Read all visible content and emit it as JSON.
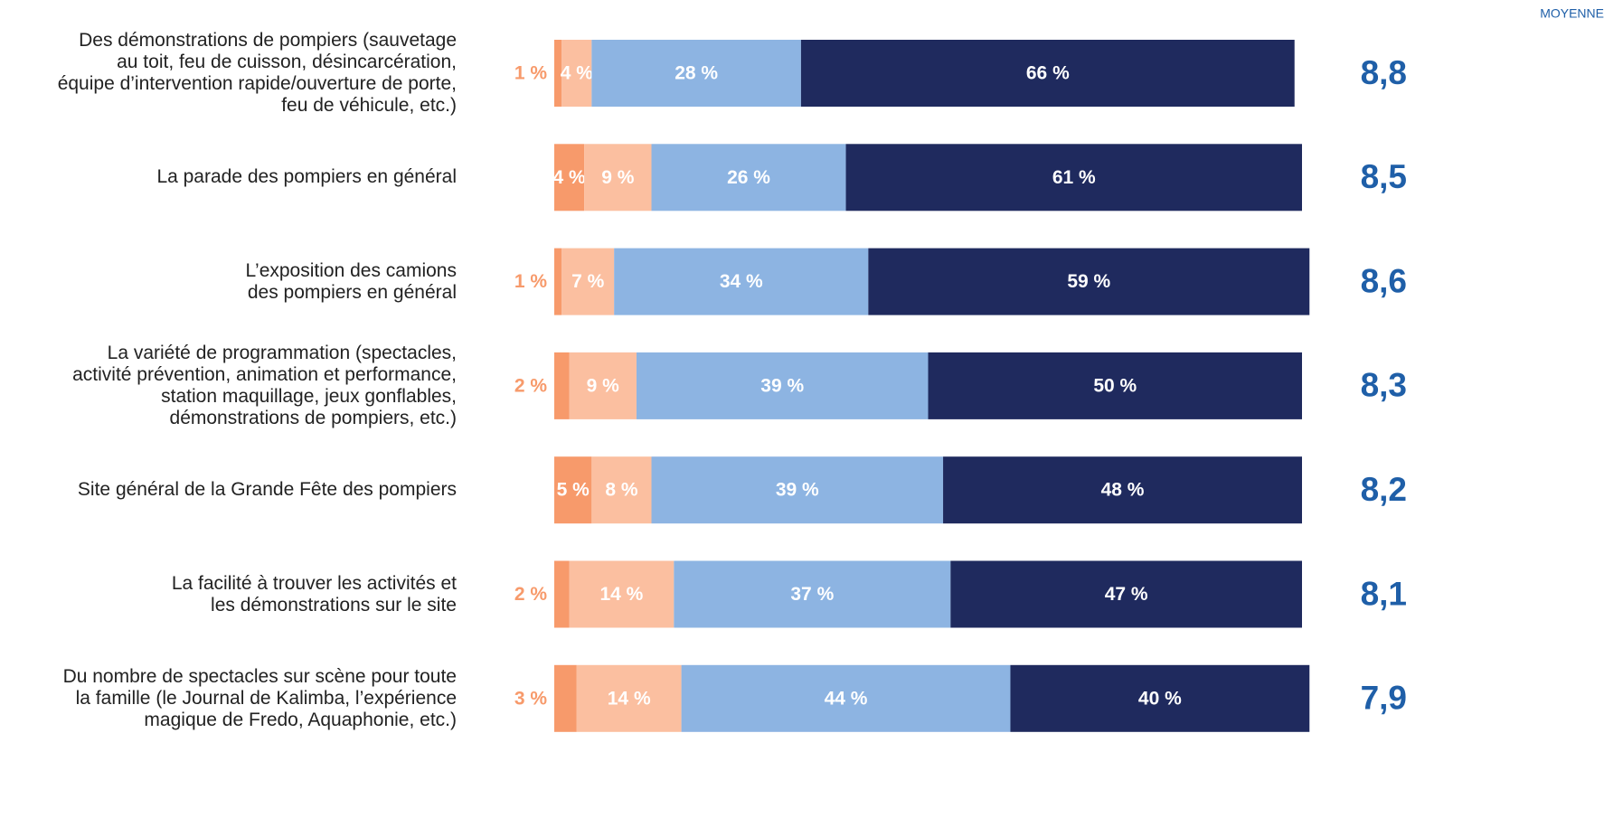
{
  "chart_data": {
    "type": "stacked-bar-horizontal",
    "categories": [
      "Des démonstrations de pompiers (sauvetage\nau toit, feu de cuisson, désincarcération,\néquipe d’intervention rapide/ouverture de porte,\nfeu de véhicule, etc.)",
      "La parade des pompiers en général",
      "L’exposition des camions\ndes pompiers en général",
      "La variété de programmation (spectacles,\nactivité prévention, animation et performance,\nstation maquillage, jeux gonflables,\ndémonstrations de pompiers, etc.)",
      "Site général de la Grande Fête des pompiers",
      "La facilité à trouver les activités et\nles démonstrations sur le site",
      "Du nombre de spectacles sur scène pour toute\nla famille (le Journal de Kalimba, l’expérience\nmagique de Fredo, Aquaphonie, etc.)"
    ],
    "series": [
      {
        "color": "#f79a6b",
        "values": [
          1,
          4,
          1,
          2,
          5,
          2,
          3
        ],
        "value_labels": [
          "1 %",
          "4 %",
          "1 %",
          "2 %",
          "5 %",
          "2 %",
          "3 %"
        ]
      },
      {
        "color": "#fbbfa0",
        "values": [
          4,
          9,
          7,
          9,
          8,
          14,
          14
        ],
        "value_labels": [
          "4 %",
          "9 %",
          "7 %",
          "9 %",
          "8 %",
          "14 %",
          "14 %"
        ]
      },
      {
        "color": "#8db4e2",
        "values": [
          28,
          26,
          34,
          39,
          39,
          37,
          44
        ],
        "value_labels": [
          "28 %",
          "26 %",
          "34 %",
          "39 %",
          "39 %",
          "37 %",
          "44 %"
        ]
      },
      {
        "color": "#1f2a5e",
        "values": [
          66,
          61,
          59,
          50,
          48,
          47,
          40
        ],
        "value_labels": [
          "66 %",
          "61 %",
          "59 %",
          "50 %",
          "48 %",
          "47 %",
          "40 %"
        ]
      }
    ],
    "xlim": [
      0,
      100
    ],
    "mean": {
      "title": "MOYENNE",
      "color": "#1f5fa8",
      "values": [
        8.8,
        8.5,
        8.6,
        8.3,
        8.2,
        8.1,
        7.9
      ],
      "value_labels": [
        "8,8",
        "8,5",
        "8,6",
        "8,3",
        "8,2",
        "8,1",
        "7,9"
      ]
    }
  }
}
